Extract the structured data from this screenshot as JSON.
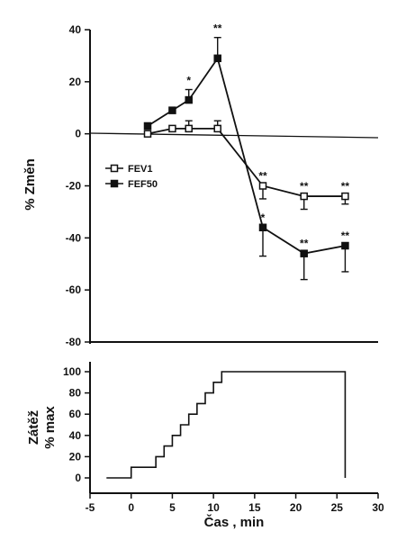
{
  "chart_data": [
    {
      "type": "line",
      "ylabel": "% Změn",
      "xlim": [
        -5,
        30
      ],
      "ylim": [
        -80,
        40
      ],
      "yticks": [
        40,
        20,
        0,
        -20,
        -40,
        -60,
        -80
      ],
      "grid": false,
      "legend_position": "center-left",
      "series": [
        {
          "name": "FEV1",
          "marker": "open-square",
          "x": [
            2,
            5,
            7,
            10.5,
            16,
            21,
            26
          ],
          "values": [
            0,
            2,
            2,
            2,
            -20,
            -24,
            -24
          ],
          "error": [
            0,
            0,
            3,
            3,
            5,
            5,
            3
          ],
          "annotations": [
            "",
            "",
            "",
            "",
            "**",
            "**",
            "**"
          ]
        },
        {
          "name": "FEF50",
          "marker": "filled-square",
          "x": [
            2,
            5,
            7,
            10.5,
            16,
            21,
            26
          ],
          "values": [
            3,
            9,
            13,
            29,
            -36,
            -46,
            -43
          ],
          "error": [
            0,
            0,
            4,
            8,
            11,
            10,
            10
          ],
          "annotations": [
            "",
            "",
            "*",
            "**",
            "*",
            "**",
            "**"
          ]
        }
      ]
    },
    {
      "type": "step",
      "xlabel": "Čas , min",
      "ylabel_line1": "Zátěž",
      "ylabel_line2": "% max",
      "xlim": [
        -5,
        30
      ],
      "ylim": [
        0,
        100
      ],
      "xticks": [
        -5,
        0,
        5,
        10,
        15,
        20,
        25,
        30
      ],
      "yticks": [
        0,
        20,
        40,
        60,
        80,
        100
      ],
      "x": [
        -3,
        0,
        3,
        4,
        5,
        6,
        7,
        8,
        9,
        10,
        11,
        26
      ],
      "values": [
        0,
        10,
        20,
        30,
        40,
        50,
        60,
        70,
        80,
        90,
        100,
        0
      ]
    }
  ]
}
